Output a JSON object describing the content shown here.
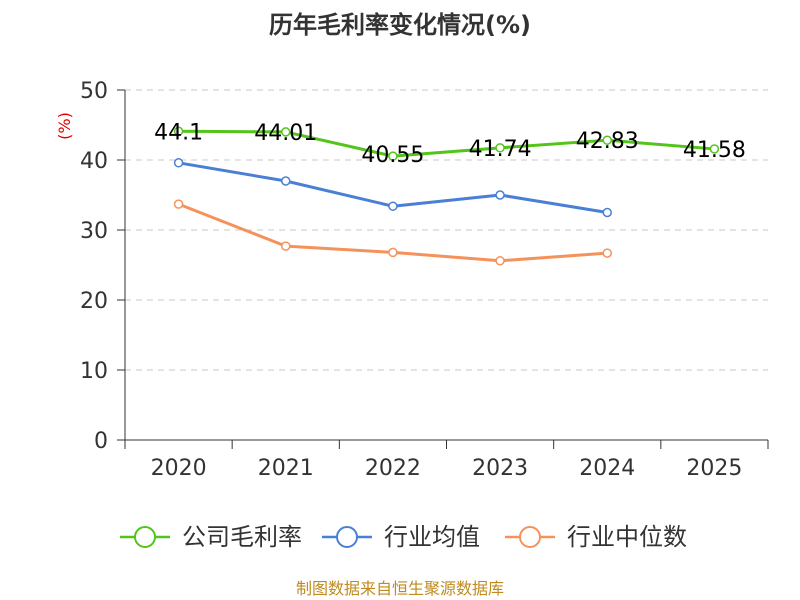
{
  "chart_data": {
    "type": "line",
    "title": "历年毛利率变化情况(%)",
    "ylabel": "(%)",
    "xlabel": "",
    "categories": [
      "2020",
      "2021",
      "2022",
      "2023",
      "2024",
      "2025"
    ],
    "ylim": [
      0,
      50
    ],
    "yticks": [
      0,
      10,
      20,
      30,
      40,
      50
    ],
    "grid": true,
    "legend_position": "bottom",
    "series": [
      {
        "name": "公司毛利率",
        "color": "#52c41a",
        "values": [
          44.1,
          44.01,
          40.55,
          41.74,
          42.83,
          41.58
        ],
        "labels": [
          "44.1",
          "44.01",
          "40.55",
          "41.74",
          "42.83",
          "41.58"
        ]
      },
      {
        "name": "行业均值",
        "color": "#4a7fd6",
        "values": [
          39.6,
          37.0,
          33.4,
          35.0,
          32.5,
          null
        ]
      },
      {
        "name": "行业中位数",
        "color": "#f5915a",
        "values": [
          33.7,
          27.7,
          26.8,
          25.6,
          26.7,
          null
        ]
      }
    ]
  },
  "source_text": "制图数据来自恒生聚源数据库"
}
